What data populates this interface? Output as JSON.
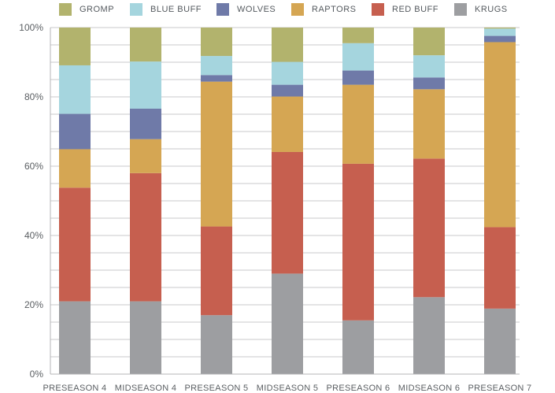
{
  "chart_data": {
    "type": "bar",
    "stacked": true,
    "percent": true,
    "categories": [
      "PRESEASON 4",
      "MIDSEASON 4",
      "PRESEASON 5",
      "MIDSEASON 5",
      "PRESEASON 6",
      "MIDSEASON 6",
      "PRESEASON 7"
    ],
    "series": [
      {
        "name": "KRUGS",
        "color": "#9d9ea1",
        "values": [
          21,
          21,
          17,
          29,
          15.5,
          22.2,
          18.9
        ]
      },
      {
        "name": "RED BUFF",
        "color": "#c65f4f",
        "values": [
          32.8,
          37,
          25.6,
          35.1,
          45.2,
          40,
          23.5
        ]
      },
      {
        "name": "RAPTORS",
        "color": "#d5a653",
        "values": [
          11.1,
          9.8,
          41.8,
          16,
          22.8,
          20,
          53.4
        ]
      },
      {
        "name": "WOLVES",
        "color": "#6f7aa8",
        "values": [
          10.2,
          8.8,
          1.9,
          3.4,
          4.1,
          3.4,
          1.8
        ]
      },
      {
        "name": "BLUE BUFF",
        "color": "#a5d5de",
        "values": [
          14,
          13.6,
          5.5,
          6.6,
          7.9,
          6.4,
          2.1
        ]
      },
      {
        "name": "GROMP",
        "color": "#b2b36d",
        "values": [
          10.9,
          9.8,
          8.2,
          9.9,
          4.5,
          8,
          0.3
        ]
      }
    ],
    "legend_order": [
      "GROMP",
      "BLUE BUFF",
      "WOLVES",
      "RAPTORS",
      "RED BUFF",
      "KRUGS"
    ],
    "y_ticks": [
      "0%",
      "20%",
      "40%",
      "60%",
      "80%",
      "100%"
    ],
    "ylim": [
      0,
      100
    ],
    "title": "",
    "xlabel": "",
    "ylabel": ""
  }
}
